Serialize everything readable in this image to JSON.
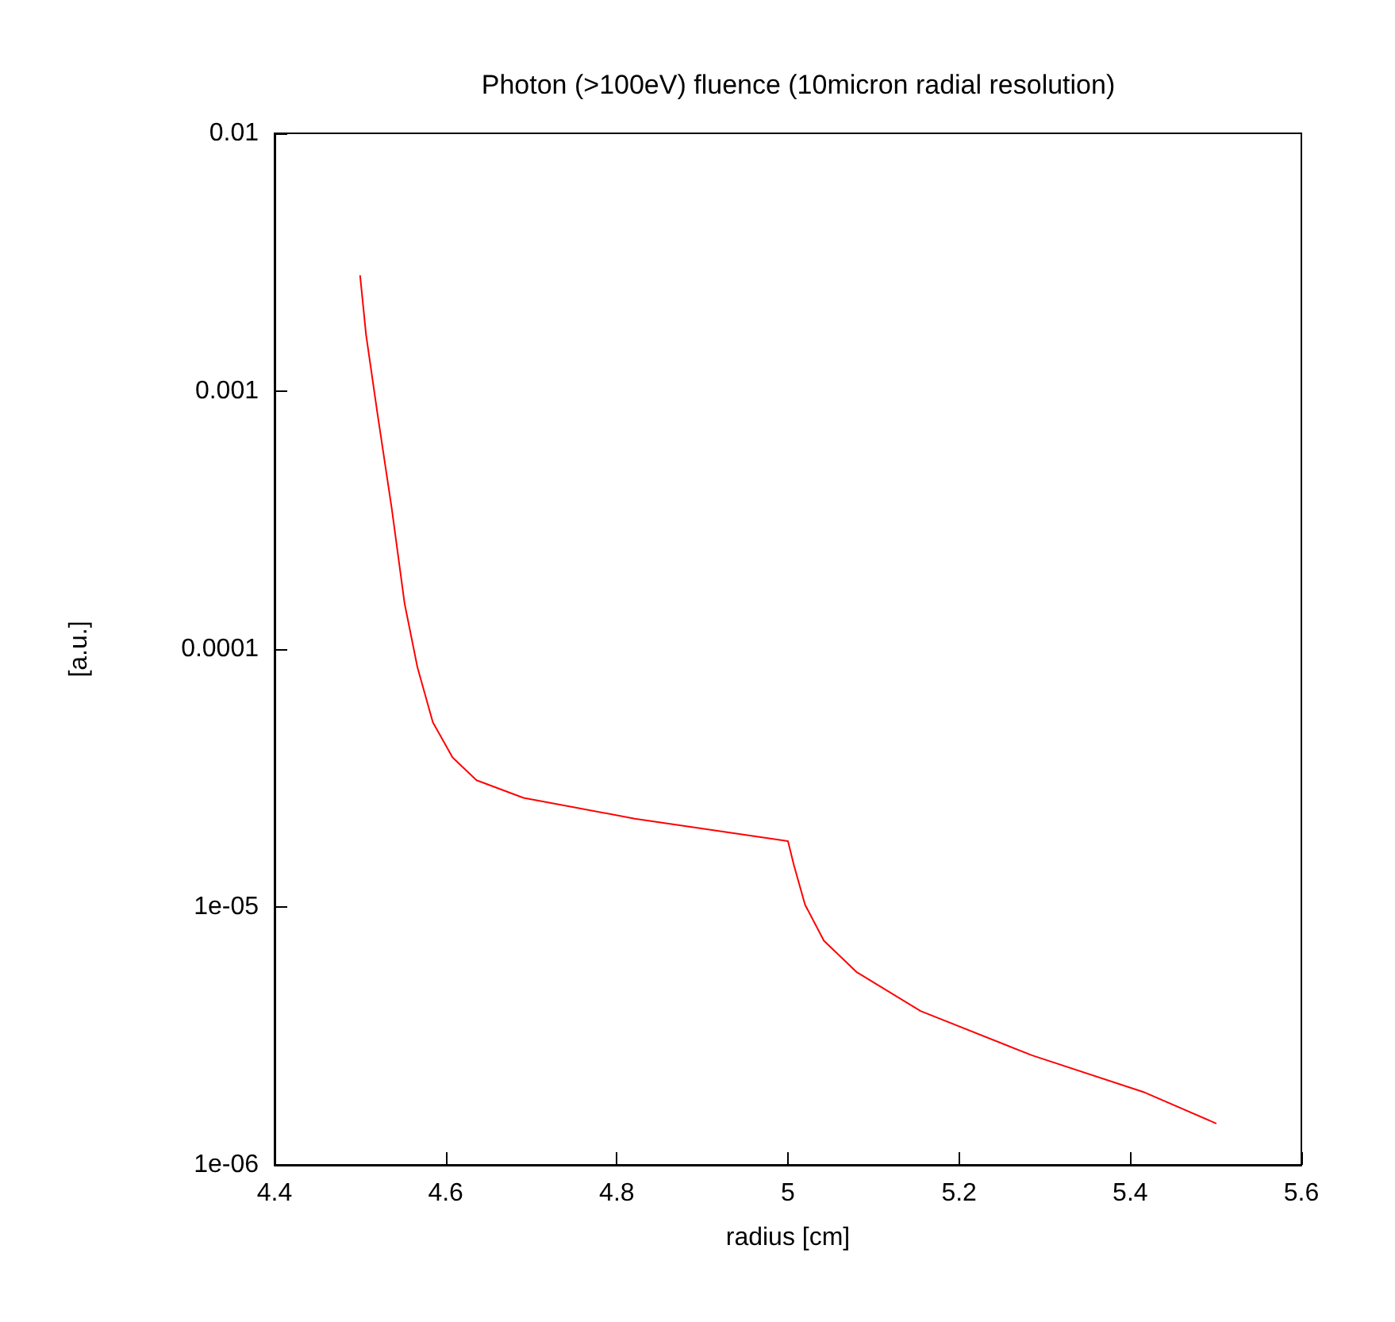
{
  "chart_data": {
    "type": "line",
    "title": "Photon (>100eV) fluence (10micron radial resolution)",
    "xlabel": "radius [cm]",
    "ylabel": "[a.u.]",
    "series": [
      {
        "color": "#ff0000",
        "x": [
          4.5,
          4.507,
          4.52,
          4.537,
          4.552,
          4.567,
          4.585,
          4.608,
          4.636,
          4.691,
          4.821,
          5.0,
          5.007,
          5.02,
          5.042,
          5.08,
          5.155,
          5.285,
          5.415,
          5.5
        ],
        "values": [
          0.0028,
          0.00165,
          0.00083,
          0.00035,
          0.00015,
          8.5e-05,
          5.2e-05,
          3.8e-05,
          3.1e-05,
          2.65e-05,
          2.2e-05,
          1.8e-05,
          1.45e-05,
          1.02e-05,
          7.4e-06,
          5.6e-06,
          3.95e-06,
          2.66e-06,
          1.92e-06,
          1.45e-06
        ]
      }
    ],
    "xlim": [
      4.4,
      5.6
    ],
    "xticks": [
      4.4,
      4.6,
      4.8,
      {
        "value": 5,
        "label": "5"
      },
      5.2,
      5.4,
      5.6
    ],
    "ylim": [
      1e-06,
      0.01
    ],
    "yticks": [
      {
        "value": 1e-06,
        "label": "1e-06"
      },
      {
        "value": 1e-05,
        "label": "1e-05"
      },
      0.0001,
      0.001,
      0.01
    ],
    "log": "y",
    "grid": false,
    "marker": "none",
    "line_style": "solid"
  }
}
